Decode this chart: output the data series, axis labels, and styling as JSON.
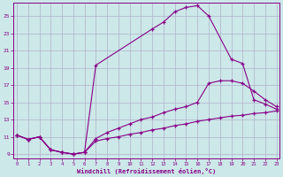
{
  "background_color": "#cce8e8",
  "grid_color": "#b0b0cc",
  "line_color": "#880088",
  "xlabel": "Windchill (Refroidissement éolien,°C)",
  "xlim": [
    -0.3,
    23.3
  ],
  "ylim": [
    8.5,
    26.5
  ],
  "yticks": [
    9,
    11,
    13,
    15,
    17,
    19,
    21,
    23,
    25
  ],
  "xticks": [
    0,
    1,
    2,
    3,
    4,
    5,
    6,
    7,
    8,
    9,
    10,
    11,
    12,
    13,
    14,
    15,
    16,
    17,
    18,
    19,
    20,
    21,
    22,
    23
  ],
  "curve1_x": [
    0,
    1,
    2,
    3,
    4,
    5,
    6,
    7,
    12,
    13,
    14,
    15,
    16,
    17,
    19,
    20,
    21,
    22,
    23
  ],
  "curve1_y": [
    11.2,
    10.7,
    11.0,
    9.5,
    9.2,
    9.0,
    9.2,
    19.3,
    23.5,
    24.3,
    25.5,
    26.0,
    26.2,
    25.0,
    20.0,
    19.5,
    15.3,
    14.8,
    14.2
  ],
  "curve2_x": [
    0,
    1,
    2,
    3,
    4,
    5,
    6,
    7,
    8,
    9,
    10,
    11,
    12,
    13,
    14,
    15,
    16,
    17,
    18,
    19,
    20,
    21,
    22,
    23
  ],
  "curve2_y": [
    11.2,
    10.7,
    11.0,
    9.5,
    9.2,
    9.0,
    9.2,
    10.8,
    11.5,
    12.0,
    12.5,
    13.0,
    13.3,
    13.8,
    14.2,
    14.5,
    15.0,
    17.2,
    17.5,
    17.5,
    17.2,
    16.3,
    15.3,
    14.5
  ],
  "curve3_x": [
    0,
    1,
    2,
    3,
    4,
    5,
    6,
    7,
    8,
    9,
    10,
    11,
    12,
    13,
    14,
    15,
    16,
    17,
    18,
    19,
    20,
    21,
    22,
    23
  ],
  "curve3_y": [
    11.2,
    10.7,
    11.0,
    9.5,
    9.2,
    9.0,
    9.2,
    10.5,
    10.8,
    11.0,
    11.3,
    11.5,
    11.8,
    12.0,
    12.3,
    12.5,
    12.8,
    13.0,
    13.2,
    13.4,
    13.5,
    13.7,
    13.8,
    14.0
  ]
}
